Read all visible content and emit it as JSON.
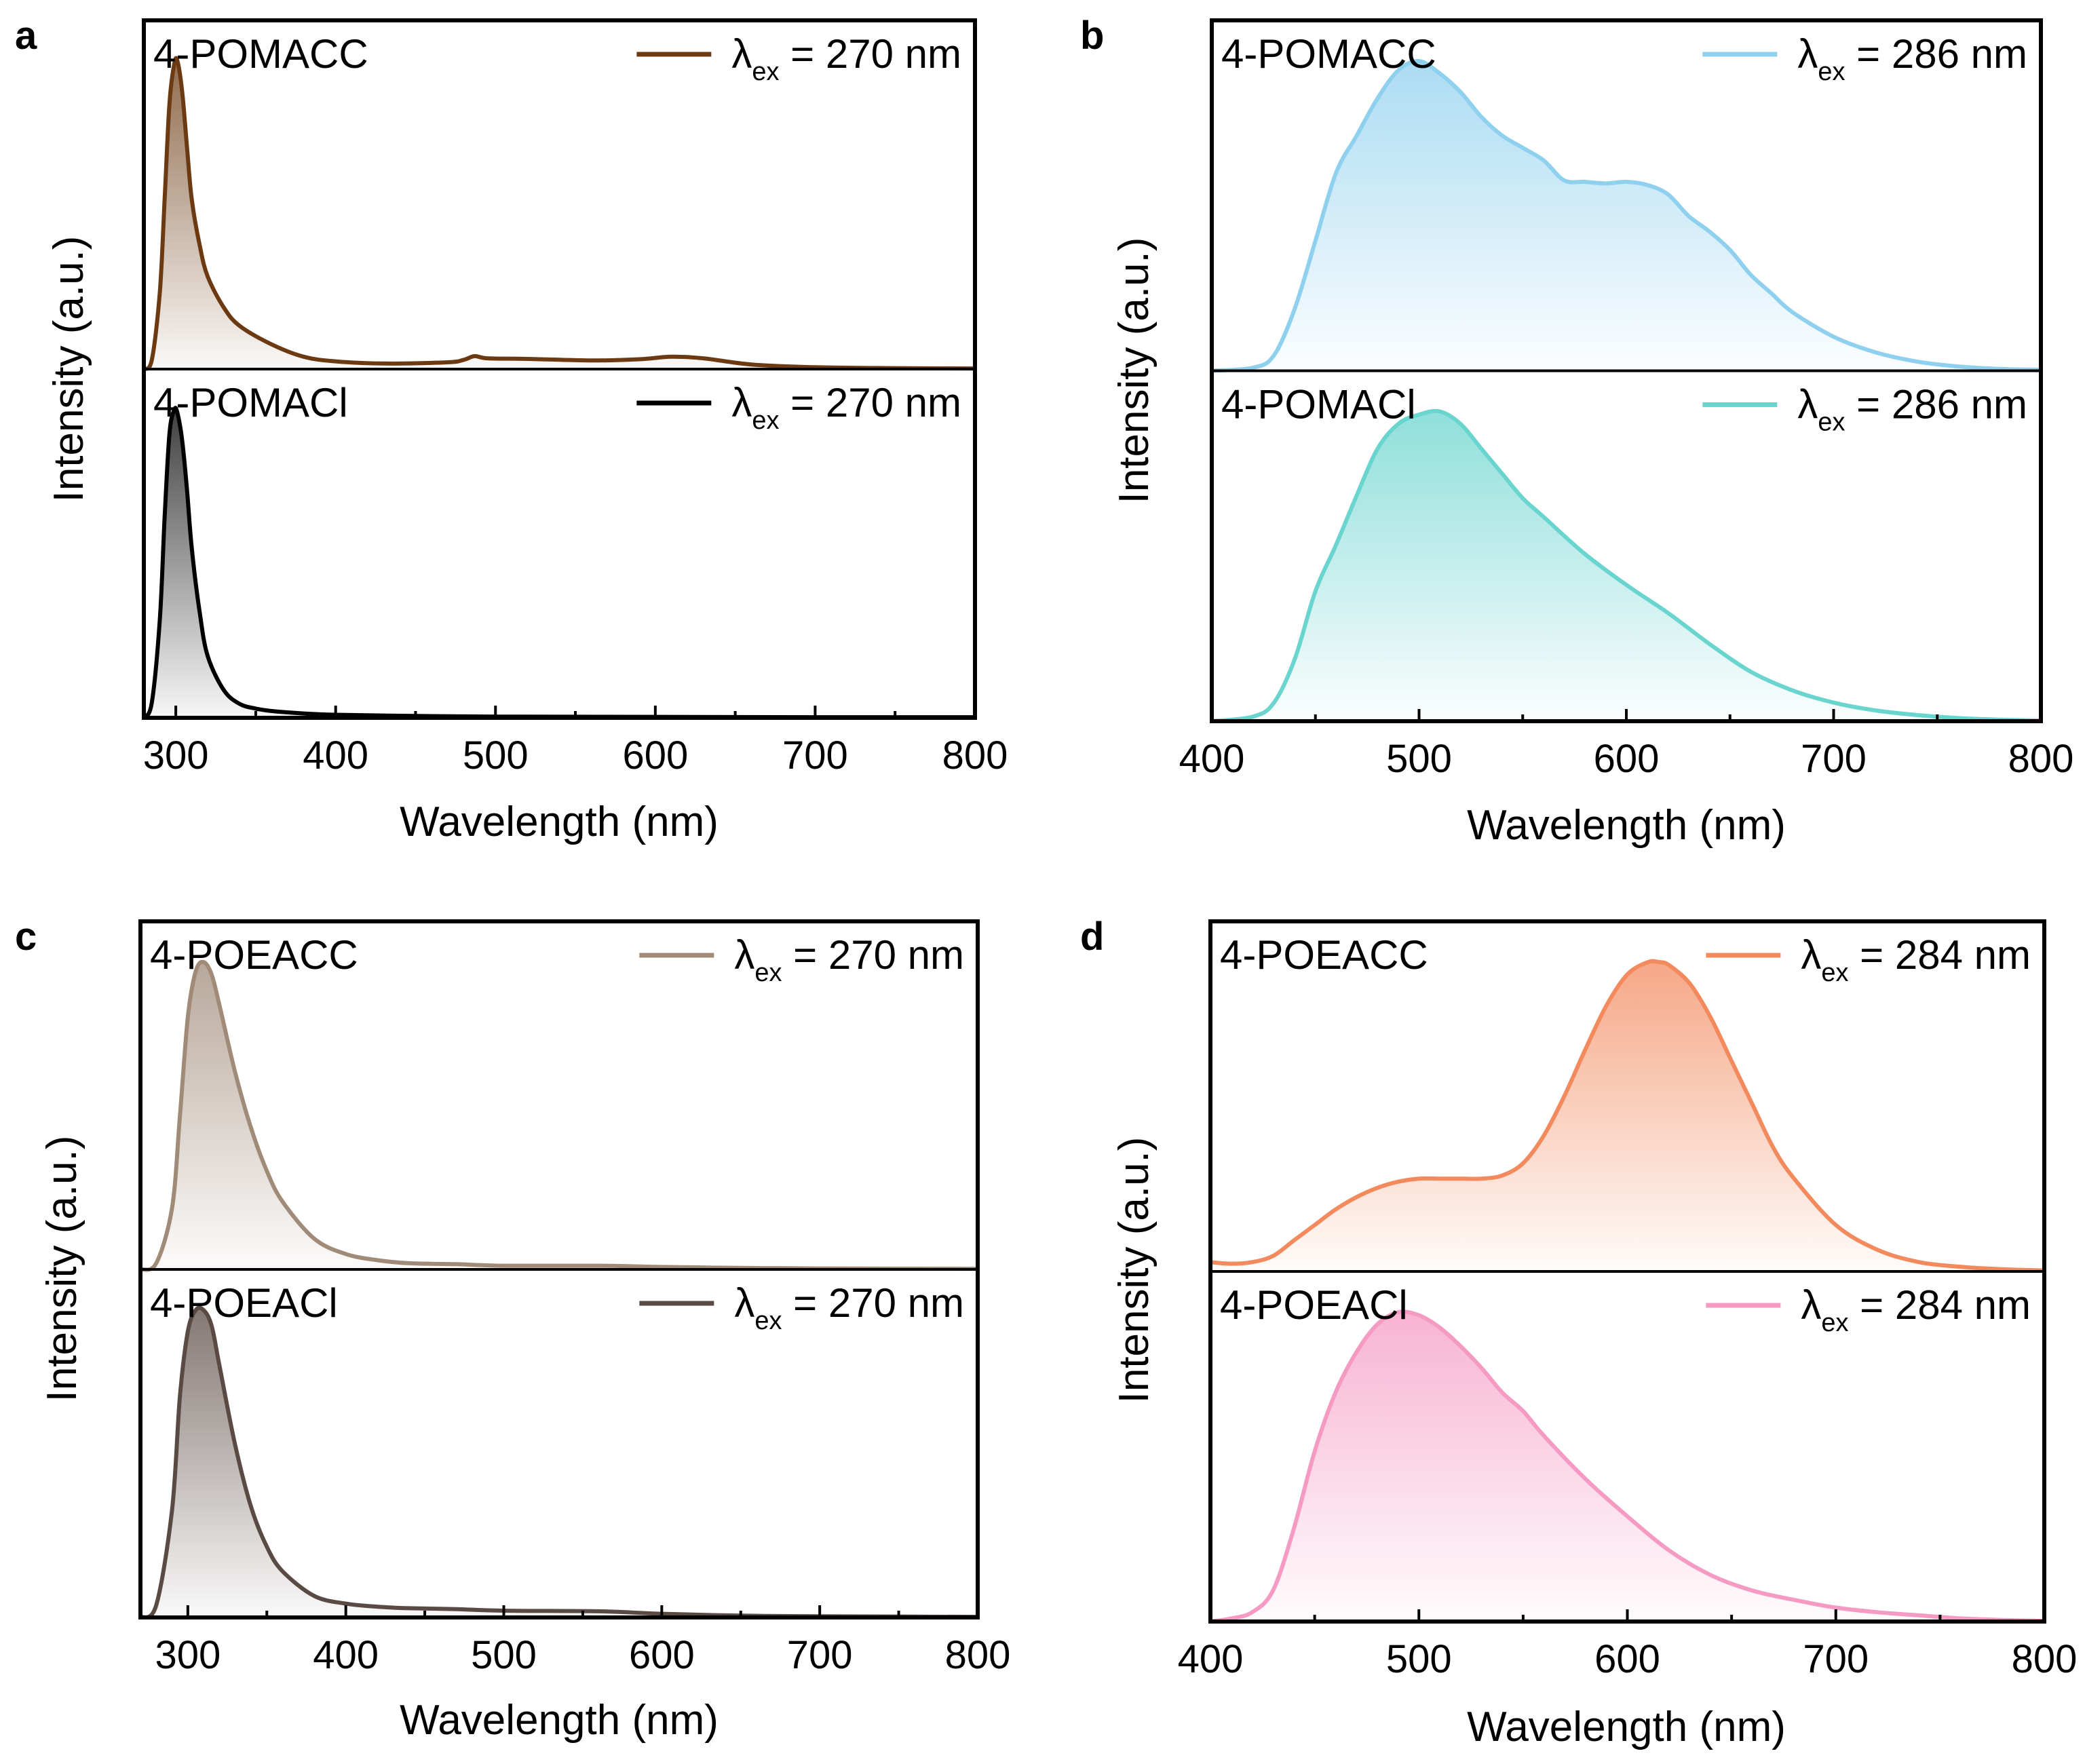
{
  "chart_data": [
    {
      "type": "area",
      "panel_label": "a",
      "xlabel": "Wavelength (nm)",
      "ylabel": "Intensity (a.u.)",
      "xlim": [
        280,
        800
      ],
      "xticks": [
        300,
        400,
        500,
        600,
        700,
        800
      ],
      "ylim": [
        0,
        1
      ],
      "series": [
        {
          "name": "4-POMACC",
          "legend": {
            "symbol": "λ",
            "sub": "ex",
            "text": "= 270 nm"
          },
          "color": "#6b3a12",
          "x": [
            280,
            285,
            290,
            293,
            296,
            299,
            301,
            304,
            307,
            310,
            315,
            320,
            330,
            340,
            360,
            380,
            400,
            430,
            470,
            480,
            487,
            495,
            520,
            560,
            590,
            610,
            630,
            660,
            700,
            750,
            800
          ],
          "y": [
            0,
            0.03,
            0.25,
            0.55,
            0.86,
            0.99,
            1.0,
            0.9,
            0.72,
            0.55,
            0.4,
            0.3,
            0.2,
            0.14,
            0.08,
            0.04,
            0.025,
            0.018,
            0.022,
            0.03,
            0.042,
            0.035,
            0.033,
            0.028,
            0.032,
            0.04,
            0.035,
            0.015,
            0.006,
            0.003,
            0.002
          ]
        },
        {
          "name": "4-POMACl",
          "legend": {
            "symbol": "λ",
            "sub": "ex",
            "text": "= 270 nm"
          },
          "color": "#000000",
          "x": [
            280,
            285,
            290,
            293,
            296,
            299,
            301,
            304,
            307,
            310,
            315,
            320,
            330,
            340,
            350,
            360,
            380,
            400,
            450,
            500,
            600,
            700,
            800
          ],
          "y": [
            0,
            0.05,
            0.32,
            0.65,
            0.92,
            1.0,
            0.99,
            0.9,
            0.74,
            0.55,
            0.34,
            0.2,
            0.09,
            0.045,
            0.03,
            0.022,
            0.014,
            0.01,
            0.006,
            0.004,
            0.003,
            0.002,
            0.002
          ]
        }
      ]
    },
    {
      "type": "area",
      "panel_label": "b",
      "xlabel": "Wavelength (nm)",
      "ylabel": "Intensity (a.u.)",
      "xlim": [
        400,
        800
      ],
      "xticks": [
        400,
        500,
        600,
        700,
        800
      ],
      "ylim": [
        0,
        1
      ],
      "series": [
        {
          "name": "4-POMACC",
          "legend": {
            "symbol": "λ",
            "sub": "ex",
            "text": "= 286 nm"
          },
          "color": "#8fd0ee",
          "x": [
            400,
            420,
            430,
            440,
            450,
            460,
            470,
            480,
            490,
            500,
            510,
            520,
            530,
            540,
            550,
            560,
            570,
            580,
            590,
            600,
            610,
            620,
            630,
            640,
            650,
            660,
            670,
            680,
            700,
            720,
            740,
            760,
            780,
            800
          ],
          "y": [
            0.0,
            0.01,
            0.05,
            0.2,
            0.42,
            0.64,
            0.76,
            0.88,
            0.97,
            1.0,
            0.96,
            0.9,
            0.82,
            0.76,
            0.72,
            0.68,
            0.615,
            0.61,
            0.605,
            0.61,
            0.6,
            0.57,
            0.5,
            0.45,
            0.39,
            0.31,
            0.25,
            0.19,
            0.11,
            0.06,
            0.03,
            0.014,
            0.006,
            0.003
          ]
        },
        {
          "name": "4-POMACl",
          "legend": {
            "symbol": "λ",
            "sub": "ex",
            "text": "= 286 nm"
          },
          "color": "#6ad4cf",
          "x": [
            400,
            420,
            430,
            440,
            450,
            460,
            470,
            480,
            490,
            500,
            510,
            520,
            530,
            540,
            550,
            560,
            580,
            600,
            620,
            640,
            660,
            680,
            700,
            720,
            740,
            760,
            780,
            800
          ],
          "y": [
            0.0,
            0.015,
            0.06,
            0.2,
            0.42,
            0.57,
            0.73,
            0.88,
            0.96,
            0.99,
            1.0,
            0.96,
            0.88,
            0.8,
            0.72,
            0.66,
            0.54,
            0.44,
            0.35,
            0.25,
            0.16,
            0.1,
            0.06,
            0.035,
            0.02,
            0.01,
            0.005,
            0.002
          ]
        }
      ]
    },
    {
      "type": "area",
      "panel_label": "c",
      "xlabel": "Wavelength (nm)",
      "ylabel": "Intensity (a.u.)",
      "xlim": [
        270,
        800
      ],
      "xticks": [
        300,
        400,
        500,
        600,
        700,
        800
      ],
      "ylim": [
        0,
        1
      ],
      "series": [
        {
          "name": "4-POEACC",
          "legend": {
            "symbol": "λ",
            "sub": "ex",
            "text": "= 270 nm"
          },
          "color": "#a08a78",
          "x": [
            270,
            280,
            290,
            295,
            300,
            305,
            310,
            315,
            320,
            330,
            340,
            350,
            360,
            380,
            400,
            420,
            440,
            470,
            500,
            560,
            600,
            650,
            700,
            800
          ],
          "y": [
            0,
            0.02,
            0.2,
            0.5,
            0.82,
            0.97,
            1.0,
            0.96,
            0.86,
            0.64,
            0.46,
            0.32,
            0.22,
            0.1,
            0.05,
            0.03,
            0.02,
            0.017,
            0.012,
            0.012,
            0.008,
            0.005,
            0.003,
            0.002
          ]
        },
        {
          "name": "4-POEACl",
          "legend": {
            "symbol": "λ",
            "sub": "ex",
            "text": "= 270 nm"
          },
          "color": "#5a4a44",
          "x": [
            270,
            280,
            290,
            295,
            300,
            305,
            310,
            315,
            320,
            330,
            340,
            350,
            360,
            380,
            400,
            420,
            440,
            470,
            500,
            560,
            600,
            650,
            700,
            800
          ],
          "y": [
            0,
            0.04,
            0.35,
            0.72,
            0.93,
            1.0,
            1.0,
            0.95,
            0.82,
            0.56,
            0.36,
            0.23,
            0.15,
            0.07,
            0.045,
            0.035,
            0.03,
            0.027,
            0.022,
            0.02,
            0.012,
            0.006,
            0.004,
            0.002
          ]
        }
      ]
    },
    {
      "type": "area",
      "panel_label": "d",
      "xlabel": "Wavelength (nm)",
      "ylabel": "Intensity (a.u.)",
      "xlim": [
        400,
        800
      ],
      "xticks": [
        400,
        500,
        600,
        700,
        800
      ],
      "ylim": [
        0,
        1
      ],
      "series": [
        {
          "name": "4-POEACC",
          "legend": {
            "symbol": "λ",
            "sub": "ex",
            "text": "= 284 nm"
          },
          "color": "#f28a5e",
          "x": [
            400,
            410,
            420,
            430,
            440,
            450,
            460,
            470,
            480,
            490,
            500,
            510,
            520,
            530,
            540,
            550,
            560,
            570,
            580,
            590,
            600,
            610,
            615,
            620,
            630,
            640,
            650,
            660,
            670,
            680,
            700,
            720,
            740,
            760,
            780,
            800
          ],
          "y": [
            0.03,
            0.025,
            0.03,
            0.05,
            0.1,
            0.15,
            0.2,
            0.24,
            0.27,
            0.29,
            0.3,
            0.3,
            0.3,
            0.3,
            0.31,
            0.35,
            0.44,
            0.57,
            0.72,
            0.86,
            0.96,
            1.0,
            1.0,
            0.99,
            0.93,
            0.82,
            0.68,
            0.54,
            0.4,
            0.3,
            0.15,
            0.07,
            0.03,
            0.015,
            0.007,
            0.003
          ]
        },
        {
          "name": "4-POEACl",
          "legend": {
            "symbol": "λ",
            "sub": "ex",
            "text": "= 284 nm"
          },
          "color": "#f59ac2",
          "x": [
            400,
            410,
            420,
            430,
            440,
            450,
            460,
            470,
            480,
            490,
            500,
            510,
            520,
            530,
            540,
            550,
            560,
            580,
            600,
            620,
            640,
            660,
            680,
            700,
            720,
            740,
            760,
            780,
            800
          ],
          "y": [
            0.0,
            0.01,
            0.03,
            0.1,
            0.3,
            0.55,
            0.74,
            0.87,
            0.96,
            1.0,
            0.99,
            0.95,
            0.89,
            0.82,
            0.74,
            0.68,
            0.6,
            0.46,
            0.34,
            0.23,
            0.15,
            0.1,
            0.07,
            0.045,
            0.03,
            0.02,
            0.01,
            0.005,
            0.002
          ]
        }
      ]
    }
  ]
}
